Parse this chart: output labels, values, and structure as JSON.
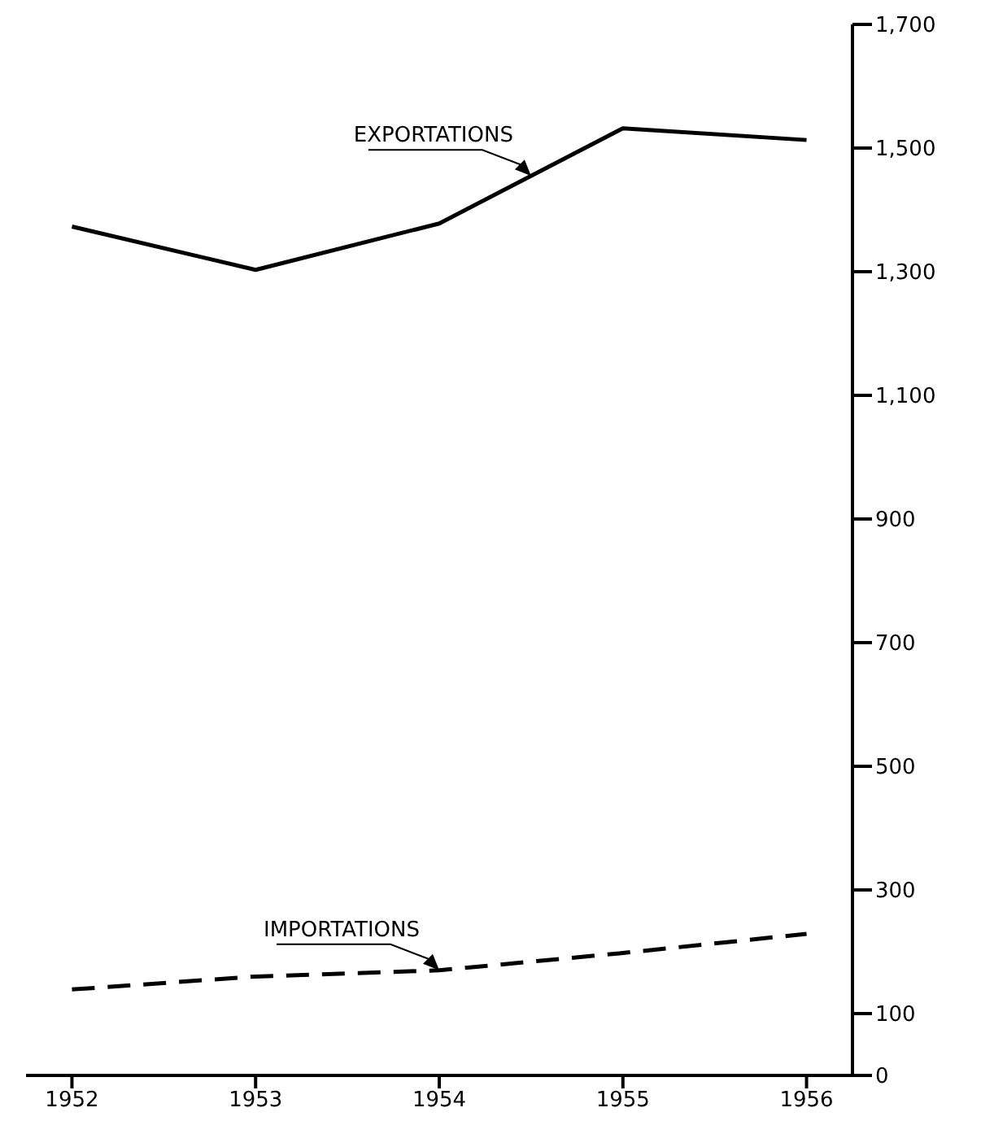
{
  "chart_data": {
    "type": "line",
    "x": [
      1952,
      1953,
      1954,
      1955,
      1956
    ],
    "series": [
      {
        "name": "EXPORTATIONS",
        "color": "#000000",
        "line_style": "solid",
        "values": [
          1373,
          1303,
          1378,
          1532,
          1513
        ]
      },
      {
        "name": "IMPORTATIONS",
        "color": "#000000",
        "line_style": "dashed",
        "values": [
          139,
          160,
          170,
          198,
          229
        ]
      }
    ],
    "xlim": [
      1951.75,
      1956.25
    ],
    "xticks": [
      1952,
      1953,
      1954,
      1955,
      1956
    ],
    "ylim": [
      0,
      1700
    ],
    "yticks": [
      0,
      100,
      300,
      500,
      700,
      900,
      {
        "value": 1100,
        "label": "1,100"
      },
      {
        "value": 1300,
        "label": "1,300"
      },
      {
        "value": 1500,
        "label": "1,500"
      },
      {
        "value": 1700,
        "label": "1,700"
      }
    ],
    "marker": "none",
    "grid": false,
    "legend": false
  }
}
